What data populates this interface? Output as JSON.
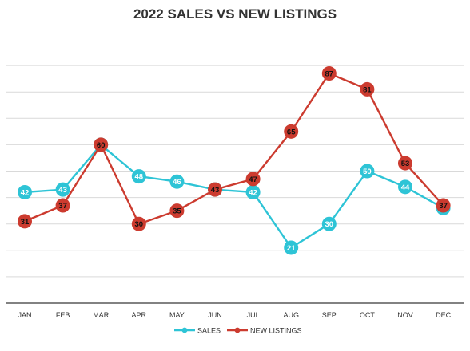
{
  "chart_data": {
    "type": "line",
    "title": "2022 SALES VS NEW LISTINGS",
    "categories": [
      "JAN",
      "FEB",
      "MAR",
      "APR",
      "MAY",
      "JUN",
      "JUL",
      "AUG",
      "SEP",
      "OCT",
      "NOV",
      "DEC"
    ],
    "series": [
      {
        "name": "SALES",
        "values": [
          42,
          43,
          60,
          48,
          46,
          43,
          42,
          21,
          30,
          50,
          44,
          36
        ],
        "labels": [
          "42",
          "43",
          "",
          "48",
          "46",
          "",
          "42",
          "21",
          "30",
          "50",
          "44",
          ""
        ],
        "color": "#2ec4d6"
      },
      {
        "name": "NEW LISTINGS",
        "values": [
          31,
          37,
          60,
          30,
          35,
          43,
          47,
          65,
          87,
          81,
          53,
          37
        ],
        "labels": [
          "31",
          "37",
          "60",
          "30",
          "35",
          "43",
          "47",
          "65",
          "87",
          "81",
          "53",
          "37"
        ],
        "color": "#cc3b2f"
      }
    ],
    "ylim": [
      0,
      100
    ],
    "xlabel": "",
    "ylabel": "",
    "grid": true,
    "legend_position": "bottom"
  }
}
